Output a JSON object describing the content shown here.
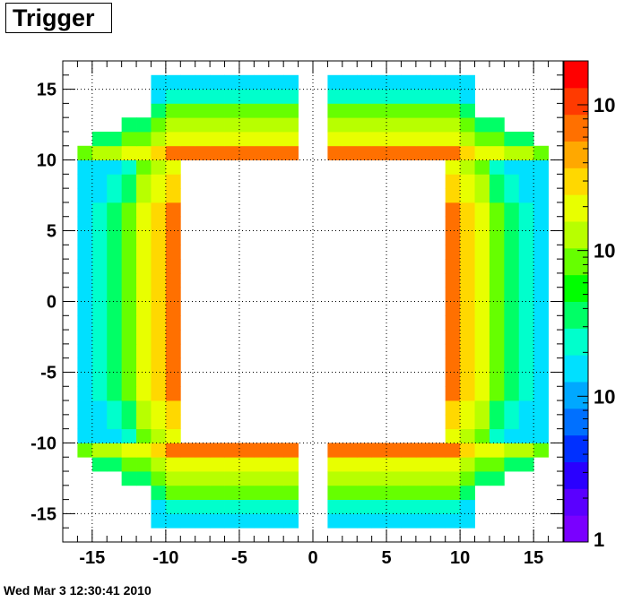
{
  "chart_data": {
    "type": "heatmap",
    "title": "Trigger",
    "xlabel": "",
    "ylabel": "",
    "xlim": [
      -17,
      17
    ],
    "ylim": [
      -17,
      17
    ],
    "x_ticks": [
      -15,
      -10,
      -5,
      0,
      5,
      10,
      15
    ],
    "y_ticks": [
      -15,
      -10,
      -5,
      0,
      5,
      10,
      15
    ],
    "grid": true,
    "bin_width": 1,
    "color_scale": "log",
    "colorbar_labels": [
      "1",
      "10",
      "10",
      "10"
    ],
    "colorbar_label_values": [
      1,
      10,
      100,
      1000
    ],
    "z_range": [
      1,
      2000
    ],
    "rows_top_to_bottom_start_y": 15,
    "rows_start_x": -15,
    "row_strings_description": "each character is one 1x1 bin starting at x=-15; '.'=empty, 1 (low) .. 9 (high)",
    "rows": [
      "...2.444555..4443..........555552444.2...",
      "....44455787..44545..........8789544.544...",
      "....4456778887..............887777544......",
      "1112..44458889...............98885542..111.",
      "144444456777999..............9997776544444.",
      "1444567.....................6765444........",
      "1456777.....................7775441........",
      "1456789.....................8877654........",
      "4456889.....................9886554........",
      "4467899.....................9987644........",
      "4567899.....................9987765........",
      "4667999.....................9998765........",
      "5777899.....................9998865........",
      "5788999.....................9999876........",
      "5788999.....................9999876........",
      "5678899.....................9998765........",
      "4678899.....................9998765........",
      "4667899.....................9987654........",
      "4457889.....................9877654........",
      "4456788.....................8876544........",
      "4456777.....................7775544........",
      "4445677.....................7776444........",
      "3444455777999..............9998874444443",
      "1112..44567788..............8877654..1110",
      "....44456778888.............887766544......",
      "....444567777................777765444.....",
      "....2.4455555...............55555442.2....",
      "..........................................."
    ]
  },
  "footer": {
    "timestamp": "Wed Mar  3 12:30:41 2010"
  },
  "colors": {
    "palette": [
      "#7a00ff",
      "#5a00ff",
      "#2a00ff",
      "#0030ff",
      "#0070ff",
      "#00a8ff",
      "#00e0ff",
      "#00ffcc",
      "#00ff66",
      "#00ff00",
      "#66ff00",
      "#b8ff00",
      "#e8ff00",
      "#ffd800",
      "#ffa800",
      "#ff7000",
      "#ff3a00",
      "#ff0000"
    ]
  }
}
